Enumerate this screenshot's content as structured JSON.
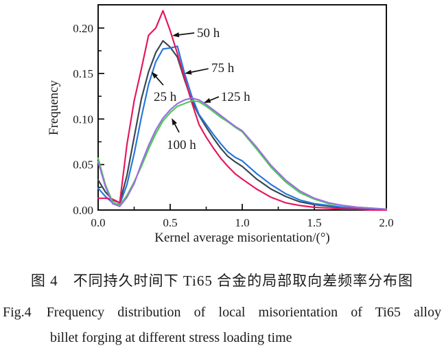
{
  "figure": {
    "caption_cn": "图 4　不同持久时间下 Ti65 合金的局部取向差频率分布图",
    "caption_en_prefix": "Fig.4",
    "caption_en_line1": "Frequency distribution of local misorientation of Ti65 alloy",
    "caption_en_line2": "billet forging at different stress loading time"
  },
  "chart_data": {
    "type": "line",
    "title": "",
    "xlabel": "Kernel average misorientation/(°)",
    "ylabel": "Frequency",
    "xlim": [
      0,
      2.0
    ],
    "ylim": [
      0,
      0.2255
    ],
    "grid": false,
    "legend_position": "inline-arrow-annotations",
    "axes": {
      "x": {
        "major": [
          0,
          0.5,
          1.0,
          1.5,
          2.0
        ],
        "tick_labels": [
          "0.0",
          "0.5",
          "1.0",
          "1.5",
          "2.0"
        ],
        "minor": [
          0.25,
          0.75,
          1.25,
          1.75
        ]
      },
      "y": {
        "major": [
          0,
          0.05,
          0.1,
          0.15,
          0.2
        ],
        "tick_labels": [
          "0.00",
          "0.05",
          "0.10",
          "0.15",
          "0.20"
        ],
        "minor": [
          0.025,
          0.075,
          0.125,
          0.175
        ]
      }
    },
    "x": [
      0,
      0.05,
      0.1,
      0.15,
      0.2,
      0.25,
      0.3,
      0.35,
      0.4,
      0.45,
      0.5,
      0.55,
      0.6,
      0.65,
      0.7,
      0.75,
      0.8,
      0.85,
      0.9,
      0.95,
      1.0,
      1.1,
      1.2,
      1.3,
      1.4,
      1.5,
      1.6,
      1.7,
      1.8,
      1.9,
      2.0
    ],
    "series": [
      {
        "name": "25 h",
        "color": "#3b474f",
        "values": [
          0.033,
          0.02,
          0.011,
          0.008,
          0.038,
          0.08,
          0.122,
          0.152,
          0.173,
          0.186,
          0.179,
          0.168,
          0.143,
          0.12,
          0.104,
          0.091,
          0.079,
          0.068,
          0.059,
          0.053,
          0.048,
          0.034,
          0.023,
          0.015,
          0.009,
          0.006,
          0.004,
          0.002,
          0.001,
          0.001,
          0.0
        ]
      },
      {
        "name": "75 h",
        "color": "#2677dd",
        "values": [
          0.024,
          0.015,
          0.008,
          0.006,
          0.028,
          0.062,
          0.102,
          0.138,
          0.163,
          0.177,
          0.178,
          0.18,
          0.15,
          0.125,
          0.105,
          0.094,
          0.083,
          0.073,
          0.064,
          0.058,
          0.054,
          0.04,
          0.028,
          0.018,
          0.011,
          0.007,
          0.005,
          0.003,
          0.002,
          0.001,
          0.001
        ]
      },
      {
        "name": "50 h",
        "color": "#e6175c",
        "values": [
          0.013,
          0.013,
          0.012,
          0.008,
          0.072,
          0.12,
          0.155,
          0.192,
          0.2,
          0.219,
          0.197,
          0.172,
          0.145,
          0.118,
          0.094,
          0.08,
          0.068,
          0.057,
          0.048,
          0.04,
          0.034,
          0.023,
          0.014,
          0.008,
          0.005,
          0.003,
          0.002,
          0.001,
          0.001,
          0.0,
          0.0
        ]
      },
      {
        "name": "100 h",
        "color": "#4ecb52",
        "values": [
          0.057,
          0.028,
          0.009,
          0.005,
          0.016,
          0.031,
          0.048,
          0.067,
          0.084,
          0.098,
          0.107,
          0.114,
          0.117,
          0.12,
          0.119,
          0.114,
          0.108,
          0.102,
          0.097,
          0.091,
          0.086,
          0.067,
          0.047,
          0.031,
          0.019,
          0.012,
          0.007,
          0.005,
          0.003,
          0.002,
          0.001
        ]
      },
      {
        "name": "125 h",
        "color": "#9a70e0",
        "values": [
          0.053,
          0.026,
          0.007,
          0.004,
          0.014,
          0.029,
          0.051,
          0.071,
          0.088,
          0.101,
          0.11,
          0.117,
          0.121,
          0.123,
          0.121,
          0.116,
          0.11,
          0.104,
          0.098,
          0.092,
          0.087,
          0.069,
          0.049,
          0.033,
          0.021,
          0.013,
          0.008,
          0.005,
          0.003,
          0.002,
          0.001
        ]
      }
    ],
    "annotations": [
      {
        "label": "50 h",
        "text_x": 0.686,
        "text_y": 0.19,
        "tail_x": 0.667,
        "tail_y": 0.1946,
        "tip_x": 0.514,
        "tip_y": 0.1916
      },
      {
        "label": "75 h",
        "text_x": 0.786,
        "text_y": 0.1516,
        "tail_x": 0.765,
        "tail_y": 0.1553,
        "tip_x": 0.6,
        "tip_y": 0.15
      },
      {
        "label": "25 h",
        "text_x": 0.386,
        "text_y": 0.12,
        "tail_x": 0.452,
        "tail_y": 0.1373,
        "tip_x": 0.37,
        "tip_y": 0.152
      },
      {
        "label": "125 h",
        "text_x": 0.852,
        "text_y": 0.12,
        "tail_x": 0.838,
        "tail_y": 0.1245,
        "tip_x": 0.733,
        "tip_y": 0.1177
      },
      {
        "label": "100 h",
        "text_x": 0.476,
        "text_y": 0.0672,
        "tail_x": 0.562,
        "tail_y": 0.0853,
        "tip_x": 0.51,
        "tip_y": 0.101
      }
    ]
  }
}
